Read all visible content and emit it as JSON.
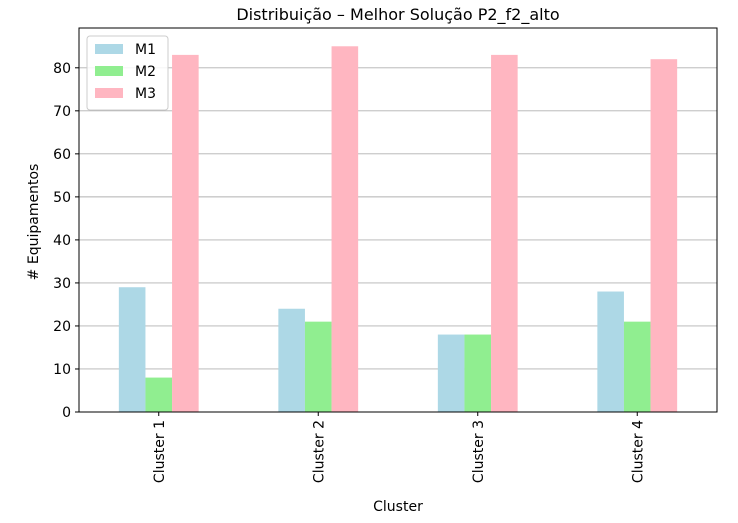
{
  "chart_data": {
    "type": "bar",
    "title": "Distribuição – Melhor Solução P2_f2_alto",
    "xlabel": "Cluster",
    "ylabel": "# Equipamentos",
    "categories": [
      "Cluster 1",
      "Cluster 2",
      "Cluster 3",
      "Cluster 4"
    ],
    "series": [
      {
        "name": "M1",
        "values": [
          29,
          24,
          18,
          28
        ],
        "color": "#add8e6"
      },
      {
        "name": "M2",
        "values": [
          8,
          21,
          18,
          21
        ],
        "color": "#90ee90"
      },
      {
        "name": "M3",
        "values": [
          83,
          85,
          83,
          82
        ],
        "color": "#ffb6c1"
      }
    ],
    "ylim": [
      0,
      89.25
    ],
    "yticks": [
      0,
      10,
      20,
      30,
      40,
      50,
      60,
      70,
      80
    ],
    "grid": "y-axis",
    "legend_position": "top-left",
    "colors": {
      "grid": "#b0b0b0",
      "axes": "#000000"
    }
  }
}
